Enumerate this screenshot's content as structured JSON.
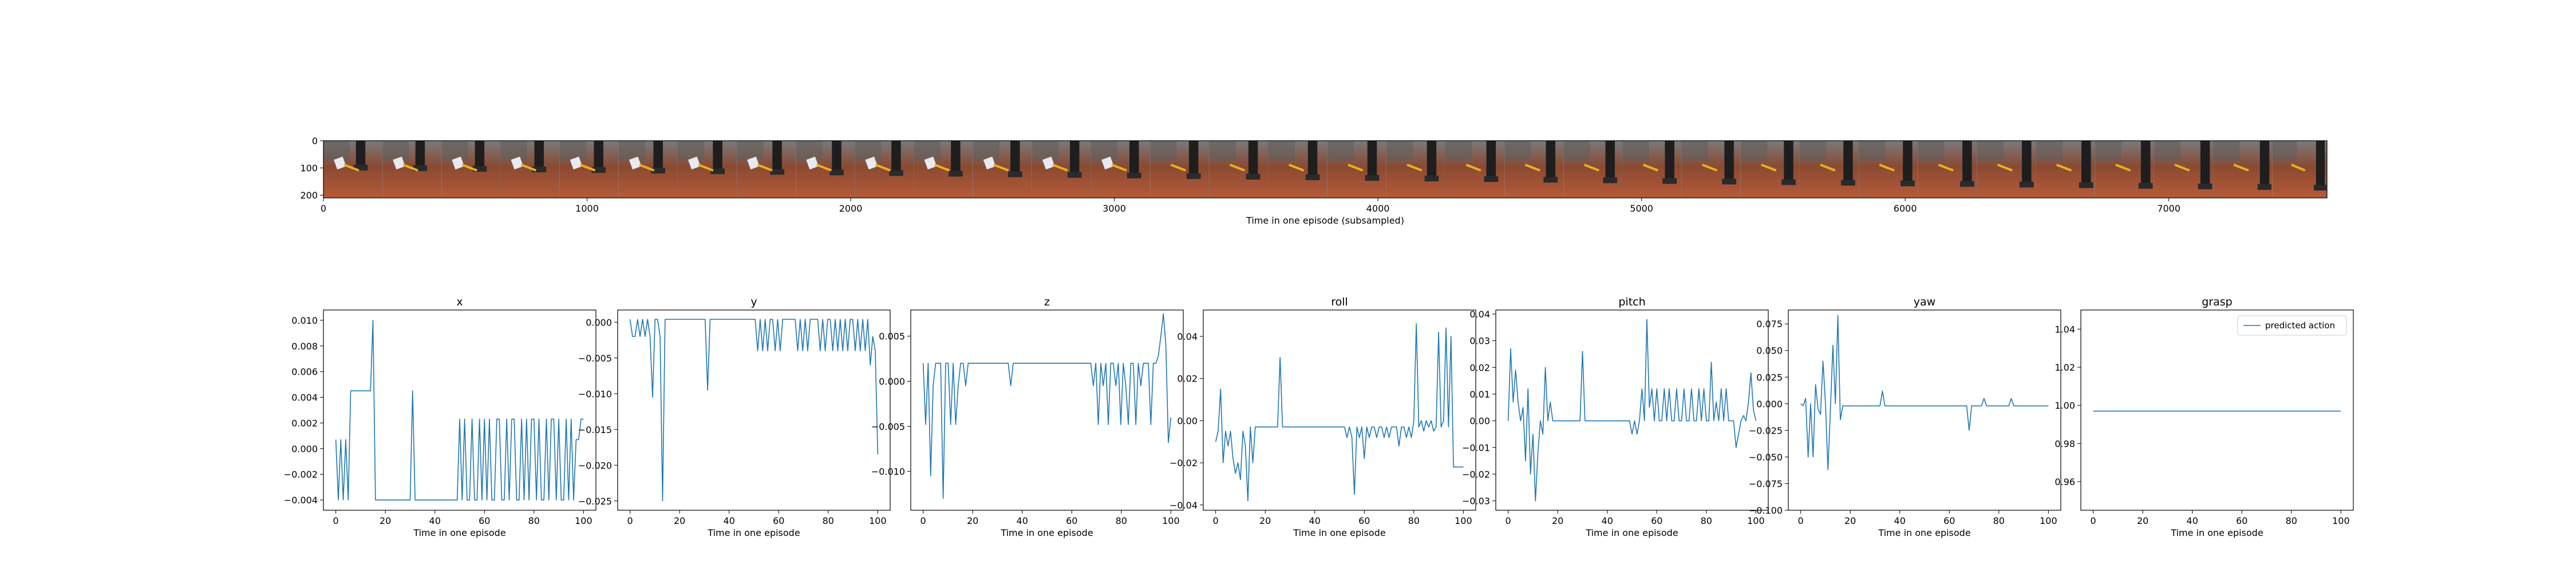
{
  "colors": {
    "line": "#1f77b4",
    "axes": "#000000",
    "background": "#ffffff"
  },
  "filmstrip": {
    "xlabel": "Time in one episode (subsampled)",
    "x_ticks": [
      0,
      1000,
      2000,
      3000,
      4000,
      5000,
      6000,
      7000
    ],
    "y_ticks": [
      0,
      100,
      200
    ],
    "xlim": [
      0,
      7600
    ],
    "ylim": [
      0,
      210
    ],
    "frame_count": 34,
    "frame_width": 224
  },
  "chart_data": [
    {
      "type": "line",
      "title": "x",
      "xlabel": "Time in one episode",
      "xlim": [
        -5,
        105
      ],
      "ylim": [
        -0.0048,
        0.0108
      ],
      "x_ticks": [
        0,
        20,
        40,
        60,
        80,
        100
      ],
      "y_ticks": [
        -0.004,
        -0.002,
        0.0,
        0.002,
        0.004,
        0.006,
        0.008,
        0.01
      ],
      "y_tick_labels": [
        "−0.004",
        "−0.002",
        "0.000",
        "0.002",
        "0.004",
        "0.006",
        "0.008",
        "0.010"
      ],
      "series": [
        {
          "values": [
            0.0007,
            -0.004,
            0.0007,
            -0.004,
            0.0007,
            -0.004,
            0.0045,
            0.0045,
            0.0045,
            0.0045,
            0.0045,
            0.0045,
            0.0045,
            0.0045,
            0.0045,
            0.01,
            -0.004,
            -0.004,
            -0.004,
            -0.004,
            -0.004,
            -0.004,
            -0.004,
            -0.004,
            -0.004,
            -0.004,
            -0.004,
            -0.004,
            -0.004,
            -0.004,
            -0.004,
            0.0045,
            -0.004,
            -0.004,
            -0.004,
            -0.004,
            -0.004,
            -0.004,
            -0.004,
            -0.004,
            -0.004,
            -0.004,
            -0.004,
            -0.004,
            -0.004,
            -0.004,
            -0.004,
            -0.004,
            -0.004,
            -0.004,
            0.0023,
            -0.004,
            0.0023,
            -0.004,
            -0.004,
            0.0023,
            -0.004,
            -0.004,
            0.0023,
            -0.004,
            0.0023,
            -0.004,
            0.0023,
            -0.004,
            -0.004,
            0.0023,
            0.0023,
            -0.004,
            -0.004,
            0.0023,
            -0.004,
            0.0023,
            0.0023,
            -0.004,
            -0.004,
            0.0023,
            -0.004,
            0.0023,
            -0.004,
            0.0023,
            0.0023,
            -0.004,
            0.0023,
            -0.004,
            -0.004,
            0.0023,
            -0.004,
            0.0023,
            0.0023,
            -0.004,
            0.0023,
            -0.004,
            -0.004,
            0.0023,
            -0.004,
            0.0023,
            -0.004,
            0.0007,
            0.0007,
            0.0023,
            0.0023
          ]
        }
      ]
    },
    {
      "type": "line",
      "title": "y",
      "xlabel": "Time in one episode",
      "xlim": [
        -5,
        105
      ],
      "ylim": [
        -0.0263,
        0.0017
      ],
      "x_ticks": [
        0,
        20,
        40,
        60,
        80,
        100
      ],
      "y_ticks": [
        -0.025,
        -0.02,
        -0.015,
        -0.01,
        -0.005,
        0.0
      ],
      "y_tick_labels": [
        "−0.025",
        "−0.020",
        "−0.015",
        "−0.010",
        "−0.005",
        "0.000"
      ],
      "series": [
        {
          "values": [
            0.0004,
            -0.002,
            -0.002,
            0.0004,
            -0.002,
            0.0004,
            -0.002,
            0.0004,
            -0.002,
            -0.0105,
            0.0004,
            0.0004,
            -0.002,
            -0.025,
            0.0004,
            0.0004,
            0.0004,
            0.0004,
            0.0004,
            0.0004,
            0.0004,
            0.0004,
            0.0004,
            0.0004,
            0.0004,
            0.0004,
            0.0004,
            0.0004,
            0.0004,
            0.0004,
            0.0004,
            -0.0095,
            0.0004,
            0.0004,
            0.0004,
            0.0004,
            0.0004,
            0.0004,
            0.0004,
            0.0004,
            0.0004,
            0.0004,
            0.0004,
            0.0004,
            0.0004,
            0.0004,
            0.0004,
            0.0004,
            0.0004,
            0.0004,
            0.0004,
            -0.004,
            0.0004,
            -0.004,
            0.0004,
            -0.004,
            0.0004,
            0.0004,
            -0.004,
            0.0004,
            -0.004,
            0.0004,
            0.0004,
            0.0004,
            0.0004,
            0.0004,
            0.0004,
            -0.004,
            0.0004,
            -0.004,
            0.0004,
            -0.004,
            0.0004,
            0.0004,
            0.0004,
            0.0004,
            -0.004,
            0.0004,
            -0.004,
            0.0004,
            0.0004,
            -0.004,
            0.0004,
            -0.004,
            0.0004,
            -0.004,
            0.0004,
            -0.004,
            0.0004,
            0.0004,
            -0.004,
            0.0004,
            -0.004,
            0.0004,
            -0.004,
            0.0004,
            -0.006,
            -0.002,
            -0.004,
            -0.0185
          ]
        }
      ]
    },
    {
      "type": "line",
      "title": "z",
      "xlabel": "Time in one episode",
      "xlim": [
        -5,
        105
      ],
      "ylim": [
        -0.0143,
        0.0079
      ],
      "x_ticks": [
        0,
        20,
        40,
        60,
        80,
        100
      ],
      "y_ticks": [
        -0.01,
        -0.005,
        0.0,
        0.005
      ],
      "y_tick_labels": [
        "−0.010",
        "−0.005",
        "0.000",
        "0.005"
      ],
      "series": [
        {
          "values": [
            0.002,
            -0.0048,
            0.002,
            -0.0105,
            -0.0005,
            0.002,
            0.002,
            0.002,
            -0.013,
            0.002,
            0.002,
            -0.0048,
            0.002,
            -0.0048,
            -0.0005,
            0.002,
            0.002,
            -0.0005,
            0.002,
            0.002,
            0.002,
            0.002,
            0.002,
            0.002,
            0.002,
            0.002,
            0.002,
            0.002,
            0.002,
            0.002,
            0.002,
            0.002,
            0.002,
            0.002,
            0.002,
            -0.0005,
            0.002,
            0.002,
            0.002,
            0.002,
            0.002,
            0.002,
            0.002,
            0.002,
            0.002,
            0.002,
            0.002,
            0.002,
            0.002,
            0.002,
            0.002,
            0.002,
            0.002,
            0.002,
            0.002,
            0.002,
            0.002,
            0.002,
            0.002,
            0.002,
            0.002,
            0.002,
            0.002,
            0.002,
            0.002,
            0.002,
            0.002,
            0.002,
            -0.0005,
            0.002,
            -0.0048,
            0.002,
            -0.0005,
            0.002,
            -0.0048,
            0.002,
            0.002,
            -0.0005,
            0.002,
            -0.0048,
            0.002,
            -0.0005,
            -0.0048,
            0.002,
            0.002,
            -0.0048,
            0.002,
            -0.0005,
            0.002,
            0.002,
            0.002,
            -0.0048,
            0.002,
            0.002,
            0.0028,
            0.005,
            0.0075,
            0.004,
            -0.0068,
            -0.004
          ]
        }
      ]
    },
    {
      "type": "line",
      "title": "roll",
      "xlabel": "Time in one episode",
      "xlim": [
        -5,
        105
      ],
      "ylim": [
        -0.0425,
        0.0525
      ],
      "x_ticks": [
        0,
        20,
        40,
        60,
        80,
        100
      ],
      "y_ticks": [
        -0.04,
        -0.02,
        0.0,
        0.02,
        0.04
      ],
      "y_tick_labels": [
        "−0.04",
        "−0.02",
        "0.00",
        "0.02",
        "0.04"
      ],
      "series": [
        {
          "values": [
            -0.01,
            -0.005,
            0.015,
            -0.02,
            -0.005,
            -0.012,
            -0.005,
            -0.018,
            -0.025,
            -0.02,
            -0.028,
            -0.005,
            -0.012,
            -0.038,
            -0.003,
            -0.02,
            -0.003,
            -0.003,
            -0.003,
            -0.003,
            -0.003,
            -0.003,
            -0.003,
            -0.003,
            -0.003,
            -0.003,
            0.03,
            -0.003,
            -0.003,
            -0.003,
            -0.003,
            -0.003,
            -0.003,
            -0.003,
            -0.003,
            -0.003,
            -0.003,
            -0.003,
            -0.003,
            -0.003,
            -0.003,
            -0.003,
            -0.003,
            -0.003,
            -0.003,
            -0.003,
            -0.003,
            -0.003,
            -0.003,
            -0.003,
            -0.003,
            -0.003,
            -0.003,
            -0.008,
            -0.003,
            -0.008,
            -0.035,
            -0.003,
            -0.008,
            -0.003,
            -0.018,
            -0.003,
            -0.008,
            -0.003,
            -0.003,
            -0.008,
            -0.003,
            -0.003,
            -0.008,
            -0.003,
            -0.008,
            -0.003,
            -0.003,
            -0.003,
            -0.012,
            -0.003,
            -0.003,
            -0.008,
            -0.003,
            -0.008,
            0.0,
            0.046,
            -0.003,
            0.0,
            -0.005,
            0.0,
            -0.003,
            0.0,
            -0.005,
            -0.003,
            0.042,
            -0.003,
            0.0,
            0.044,
            -0.003,
            0.04,
            -0.022,
            -0.022,
            -0.022,
            -0.022,
            -0.022
          ]
        }
      ]
    },
    {
      "type": "line",
      "title": "pitch",
      "xlabel": "Time in one episode",
      "xlim": [
        -5,
        105
      ],
      "ylim": [
        -0.0335,
        0.0415
      ],
      "x_ticks": [
        0,
        20,
        40,
        60,
        80,
        100
      ],
      "y_ticks": [
        -0.03,
        -0.02,
        -0.01,
        0.0,
        0.01,
        0.02,
        0.03,
        0.04
      ],
      "y_tick_labels": [
        "−0.03",
        "−0.02",
        "−0.01",
        "0.00",
        "0.01",
        "0.02",
        "0.03",
        "0.04"
      ],
      "series": [
        {
          "values": [
            0.0,
            0.027,
            0.007,
            0.019,
            0.007,
            0.0,
            0.005,
            -0.015,
            0.012,
            -0.02,
            -0.005,
            -0.03,
            -0.012,
            0.0,
            -0.005,
            0.02,
            0.0,
            0.007,
            0.0,
            0.0,
            0.0,
            0.0,
            0.0,
            0.0,
            0.0,
            0.0,
            0.0,
            0.0,
            0.0,
            0.0,
            0.026,
            0.0,
            0.0,
            0.0,
            0.0,
            0.0,
            0.0,
            0.0,
            0.0,
            0.0,
            0.0,
            0.0,
            0.0,
            0.0,
            0.0,
            0.0,
            0.0,
            0.0,
            0.0,
            0.0,
            -0.005,
            0.0,
            -0.005,
            0.0,
            0.012,
            0.0,
            0.038,
            0.005,
            0.012,
            0.0,
            0.012,
            0.0,
            0.0,
            0.012,
            0.0,
            0.012,
            0.0,
            0.0,
            0.012,
            0.0,
            0.0,
            0.012,
            0.0,
            0.0,
            0.012,
            0.0,
            0.0,
            0.012,
            0.0,
            0.012,
            0.0,
            0.0,
            0.022,
            0.0,
            0.007,
            0.0,
            0.012,
            0.0,
            0.012,
            0.0,
            0.0,
            0.0,
            -0.01,
            -0.005,
            0.0,
            0.002,
            0.0,
            0.007,
            0.018,
            0.004,
            0.0
          ]
        }
      ]
    },
    {
      "type": "line",
      "title": "yaw",
      "xlabel": "Time in one episode",
      "xlim": [
        -5,
        105
      ],
      "ylim": [
        -0.1,
        0.088
      ],
      "x_ticks": [
        0,
        20,
        40,
        60,
        80,
        100
      ],
      "y_ticks": [
        -0.1,
        -0.075,
        -0.05,
        -0.025,
        0.0,
        0.025,
        0.05,
        0.075
      ],
      "y_tick_labels": [
        "−0.100",
        "−0.075",
        "−0.050",
        "−0.025",
        "0.000",
        "0.025",
        "0.050",
        "0.075"
      ],
      "series": [
        {
          "values": [
            0.0,
            -0.002,
            0.005,
            -0.05,
            0.0,
            -0.05,
            0.018,
            -0.005,
            -0.01,
            0.04,
            0.0,
            -0.062,
            -0.005,
            0.055,
            0.0,
            0.083,
            -0.015,
            -0.002,
            -0.002,
            -0.002,
            -0.002,
            -0.002,
            -0.002,
            -0.002,
            -0.002,
            -0.002,
            -0.002,
            -0.002,
            -0.002,
            -0.002,
            -0.002,
            -0.002,
            -0.002,
            0.012,
            -0.002,
            -0.002,
            -0.002,
            -0.002,
            -0.002,
            -0.002,
            -0.002,
            -0.002,
            -0.002,
            -0.002,
            -0.002,
            -0.002,
            -0.002,
            -0.002,
            -0.002,
            -0.002,
            -0.002,
            -0.002,
            -0.002,
            -0.002,
            -0.002,
            -0.002,
            -0.002,
            -0.002,
            -0.002,
            -0.002,
            -0.002,
            -0.002,
            -0.002,
            -0.002,
            -0.002,
            -0.002,
            -0.002,
            -0.002,
            -0.025,
            -0.002,
            -0.002,
            -0.002,
            -0.002,
            -0.002,
            0.005,
            -0.002,
            -0.002,
            -0.002,
            -0.002,
            -0.002,
            -0.002,
            -0.002,
            -0.002,
            -0.002,
            -0.002,
            0.005,
            -0.002,
            -0.002,
            -0.002,
            -0.002,
            -0.002,
            -0.002,
            -0.002,
            -0.002,
            -0.002,
            -0.002,
            -0.002,
            -0.002,
            -0.002,
            -0.002,
            -0.002
          ]
        }
      ]
    },
    {
      "type": "line",
      "title": "grasp",
      "xlabel": "Time in one episode",
      "xlim": [
        -5,
        105
      ],
      "ylim": [
        0.945,
        1.05
      ],
      "x_ticks": [
        0,
        20,
        40,
        60,
        80,
        100
      ],
      "y_ticks": [
        0.96,
        0.98,
        1.0,
        1.02,
        1.04
      ],
      "y_tick_labels": [
        "0.96",
        "0.98",
        "1.00",
        "1.02",
        "1.04"
      ],
      "legend": {
        "placement": "top-right",
        "label": "predicted action"
      },
      "series": [
        {
          "name": "predicted action",
          "values": [
            0.997,
            0.997
          ]
        }
      ]
    }
  ]
}
